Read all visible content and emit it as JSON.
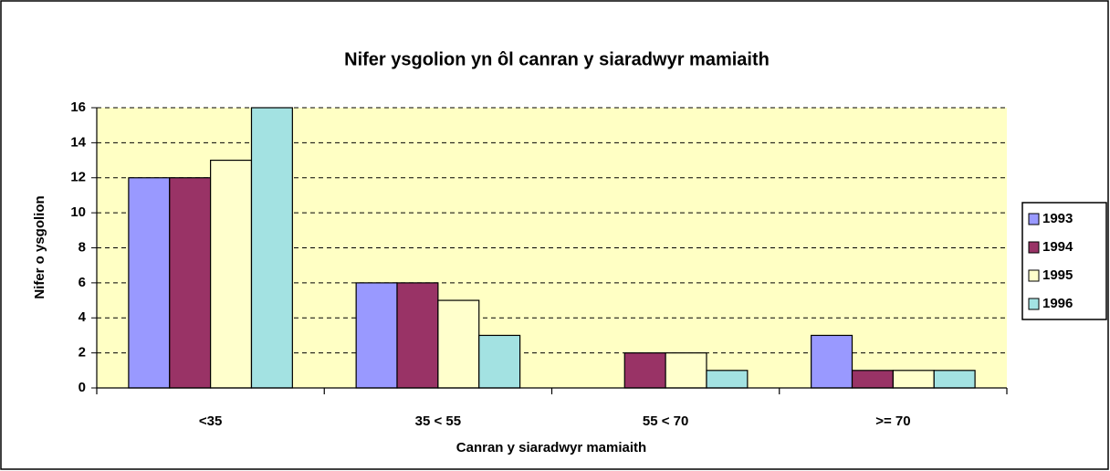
{
  "chart_data": {
    "type": "bar",
    "title": "Nifer ysgolion yn ôl canran y siaradwyr mamiaith",
    "x_label": "Canran y siaradwyr mamiaith",
    "y_label": "Nifer o ysgolion",
    "categories": [
      "<35",
      "35 < 55",
      "55 < 70",
      ">= 70"
    ],
    "series": [
      {
        "name": "1993",
        "color": "#9999ff",
        "values": [
          12,
          6,
          0,
          3
        ]
      },
      {
        "name": "1994",
        "color": "#993366",
        "values": [
          12,
          6,
          2,
          1
        ]
      },
      {
        "name": "1995",
        "color": "#ffffcc",
        "values": [
          13,
          5,
          2,
          1
        ]
      },
      {
        "name": "1996",
        "color": "#a3e2e2",
        "values": [
          16,
          3,
          1,
          1
        ]
      }
    ],
    "ylim": [
      0,
      16
    ],
    "yticks": [
      0,
      2,
      4,
      6,
      8,
      10,
      12,
      14,
      16
    ],
    "grid": true,
    "legend": "right"
  }
}
